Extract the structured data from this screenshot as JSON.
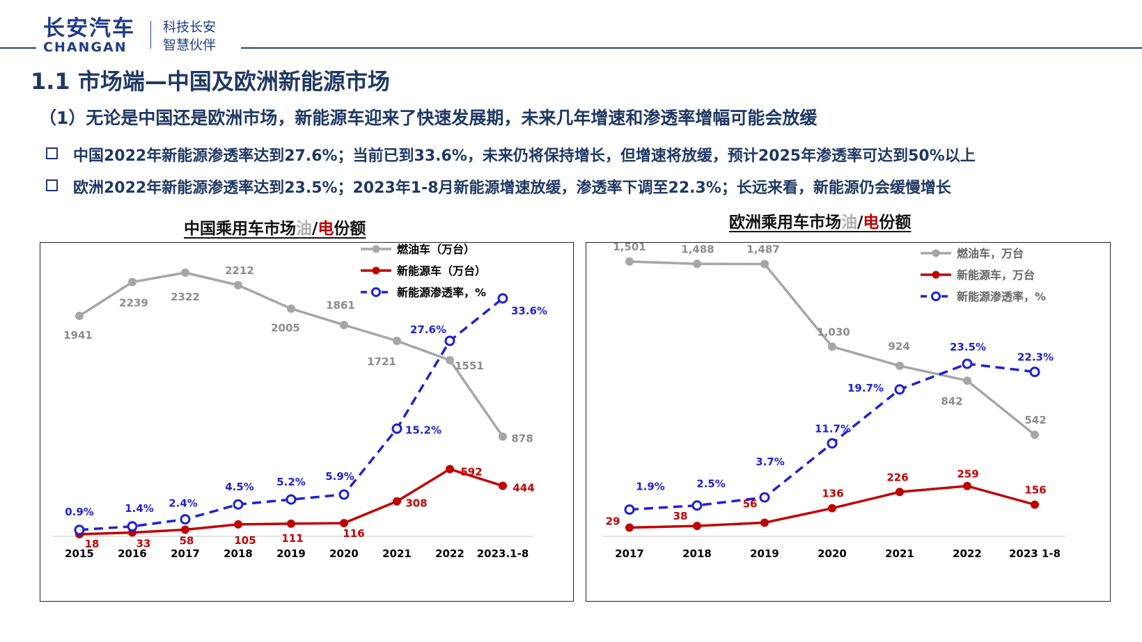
{
  "header": {
    "logo_cn": "长安汽车",
    "logo_en": "CHANGAN",
    "slogan_line1": "科技长安",
    "slogan_line2": "智慧伙伴"
  },
  "page_title": "1.1 市场端—中国及欧洲新能源市场",
  "subtitle": "（1）无论是中国还是欧洲市场，新能源车迎来了快速发展期，未来几年增速和渗透率增幅可能会放缓",
  "bullets": [
    "中国2022年新能源渗透率达到27.6%；当前已到33.6%，未来仍将保持增长，但增速将放缓，预计2025年渗透率可达到50%以上",
    "欧洲2022年新能源渗透率达到23.5%；2023年1-8月新能源增速放缓，渗透率下调至22.3%；长远来看，新能源仍会缓慢增长"
  ],
  "colors": {
    "title_blue": "#1f3864",
    "fuel_gray": "#a6a6a6",
    "nev_red": "#c00000",
    "penetration_blue": "#1f1fd6"
  },
  "chart_data": [
    {
      "type": "line",
      "title_parts": [
        "中国乘用车市场",
        "油",
        "/",
        "电",
        "份额"
      ],
      "categories": [
        "2015",
        "2016",
        "2017",
        "2018",
        "2019",
        "2020",
        "2021",
        "2022",
        "2023.1-8"
      ],
      "series": [
        {
          "name": "燃油车（万台）",
          "values": [
            1941,
            2239,
            2322,
            2212,
            2005,
            1861,
            1721,
            1551,
            878
          ],
          "labels": [
            "1941",
            "2239",
            "2322",
            "2212",
            "2005",
            "1861",
            "1721",
            "1551",
            "878"
          ],
          "color": "#a6a6a6",
          "style": "solid",
          "axis": "volume"
        },
        {
          "name": "新能源车（万台）",
          "values": [
            18,
            33,
            58,
            105,
            111,
            116,
            308,
            592,
            444
          ],
          "labels": [
            "18",
            "33",
            "58",
            "105",
            "111",
            "116",
            "308",
            "592",
            "444"
          ],
          "color": "#c00000",
          "style": "solid",
          "axis": "volume"
        },
        {
          "name": "新能源渗透率，%",
          "values": [
            0.9,
            1.4,
            2.4,
            4.5,
            5.2,
            5.9,
            15.2,
            27.6,
            33.6
          ],
          "labels": [
            "0.9%",
            "1.4%",
            "2.4%",
            "4.5%",
            "5.2%",
            "5.9%",
            "15.2%",
            "27.6%",
            "33.6%"
          ],
          "color": "#1f1fd6",
          "style": "dashed",
          "marker": "hollow-circle",
          "axis": "percent"
        }
      ],
      "axes_visible": false,
      "grid": false,
      "legend_position": "top-right"
    },
    {
      "type": "line",
      "title_parts": [
        "欧洲乘用车市场",
        "油",
        "/",
        "电",
        "份额"
      ],
      "categories": [
        "2017",
        "2018",
        "2019",
        "2020",
        "2021",
        "2022",
        "2023 1-8"
      ],
      "series": [
        {
          "name": "燃油车，万台",
          "values": [
            1501,
            1488,
            1487,
            1030,
            924,
            842,
            542
          ],
          "labels": [
            "1,501",
            "1,488",
            "1,487",
            "1,030",
            "924",
            "842",
            "542"
          ],
          "color": "#a6a6a6",
          "style": "solid",
          "axis": "volume"
        },
        {
          "name": "新能源车，万台",
          "values": [
            29,
            38,
            56,
            136,
            226,
            259,
            156
          ],
          "labels": [
            "29",
            "38",
            "56",
            "136",
            "226",
            "259",
            "156"
          ],
          "color": "#c00000",
          "style": "solid",
          "axis": "volume"
        },
        {
          "name": "新能源渗透率，%",
          "values": [
            1.9,
            2.5,
            3.7,
            11.7,
            19.7,
            23.5,
            22.3
          ],
          "labels": [
            "1.9%",
            "2.5%",
            "3.7%",
            "11.7%",
            "19.7%",
            "23.5%",
            "22.3%"
          ],
          "color": "#1f1fd6",
          "style": "dashed",
          "marker": "hollow-circle",
          "axis": "percent"
        }
      ],
      "axes_visible": false,
      "grid": false,
      "legend_position": "top-right"
    }
  ]
}
